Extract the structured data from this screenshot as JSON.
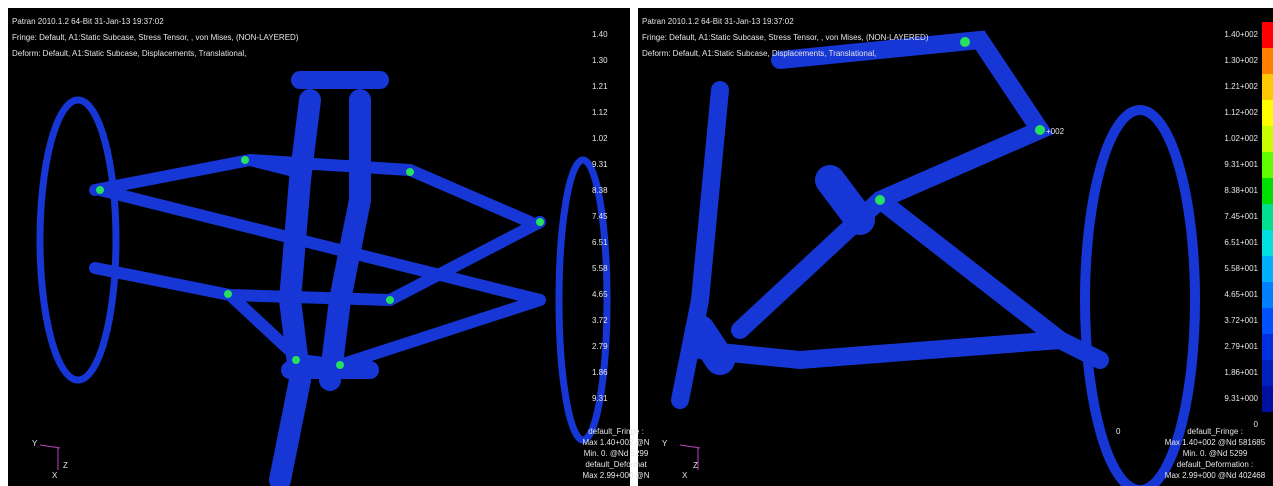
{
  "left_panel": {
    "header": [
      "Patran 2010.1.2 64-Bit 31-Jan-13 19:37:02",
      "Fringe: Default, A1:Static Subcase, Stress Tensor, , von Mises, (NON-LAYERED)",
      "Deform: Default, A1:Static Subcase, Displacements, Translational,"
    ],
    "legend_labels": [
      "1.40",
      "1.30",
      "1.21",
      "1.12",
      "1.02",
      "9.31",
      "8.38",
      "7.45",
      "6.51",
      "5.58",
      "4.65",
      "3.72",
      "2.79",
      "1.86",
      "9.31"
    ],
    "info": [
      "default_Fringe :",
      "Max 1.40+002 @N",
      "Min. 0. @Nd 5299",
      "default_Deformat",
      "Max 2.99+000 @N"
    ],
    "axes": [
      "Y",
      "Z",
      "X"
    ]
  },
  "right_panel": {
    "header": [
      "Patran 2010.1.2 64-Bit 31-Jan-13 19:37:02",
      "Fringe: Default, A1:Static Subcase, Stress Tensor, , von Mises, (NON-LAYERED)",
      "Deform: Default, A1:Static Subcase, Displacements, Translational,"
    ],
    "legend_labels": [
      "1.40+002",
      "1.30+002",
      "1.21+002",
      "1.12+002",
      "1.02+002",
      "9.31+001",
      "8.38+001",
      "7.45+001",
      "6.51+001",
      "5.58+001",
      "4.65+001",
      "3.72+001",
      "2.79+001",
      "1.86+001",
      "9.31+000",
      "0"
    ],
    "info": [
      "default_Fringe :",
      "Max 1.40+002 @Nd 581685",
      "Min. 0. @Nd 5299",
      "default_Deformation :",
      "Max 2.99+000 @Nd 402468"
    ],
    "annotations": [
      "+002",
      "0"
    ],
    "axes": [
      "Y",
      "Z",
      "X"
    ]
  }
}
